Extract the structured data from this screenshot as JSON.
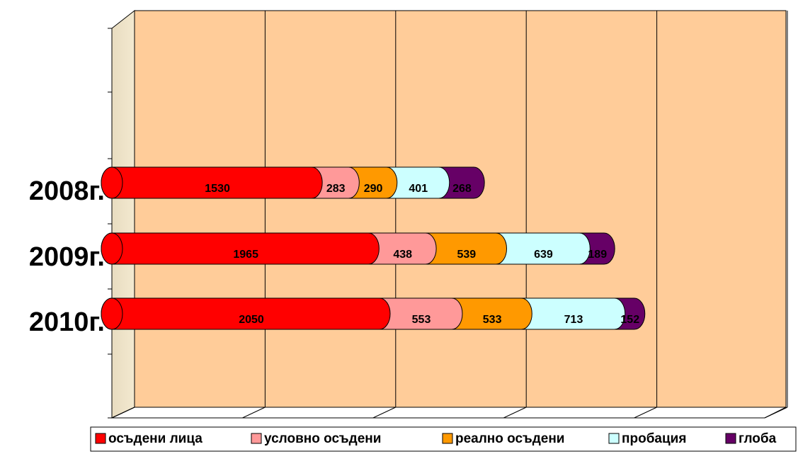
{
  "chart_data": {
    "type": "bar",
    "orientation": "horizontal",
    "stacked": true,
    "categories": [
      "2008г.",
      "2009г.",
      "2010г."
    ],
    "series": [
      {
        "name": "осъдени лица",
        "color": "#ff0000",
        "values": [
          1530,
          1965,
          2050
        ]
      },
      {
        "name": "условно осъдени",
        "color": "#ff9999",
        "values": [
          283,
          438,
          553
        ]
      },
      {
        "name": "реално осъдени",
        "color": "#ff9900",
        "values": [
          290,
          539,
          533
        ]
      },
      {
        "name": "пробация",
        "color": "#ccffff",
        "values": [
          401,
          639,
          713
        ]
      },
      {
        "name": "глоба",
        "color": "#660066",
        "values": [
          268,
          189,
          152
        ]
      }
    ],
    "xlim": [
      0,
      5000
    ],
    "xticks": [
      0,
      1000,
      2000,
      3000,
      4000,
      5000
    ],
    "grid": true,
    "legend": "bottom"
  }
}
